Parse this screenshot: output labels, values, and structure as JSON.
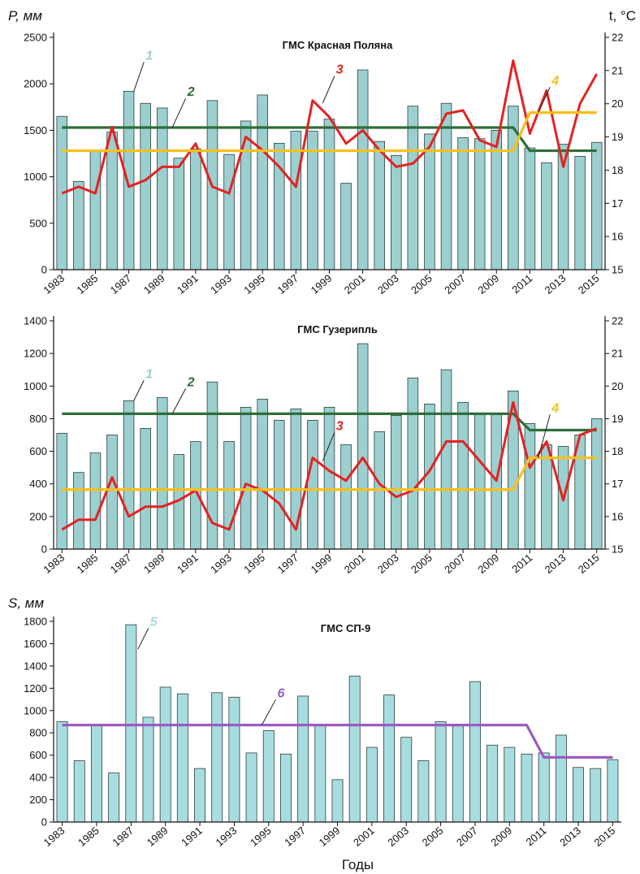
{
  "chart_data": [
    {
      "type": "bar",
      "title": "ГМС Красная Поляна",
      "ylabel": "P, мм",
      "y2label": "t, °C",
      "x_tick_labels": [
        "1983",
        "1985",
        "1987",
        "1989",
        "1991",
        "1993",
        "1995",
        "1997",
        "1999",
        "2001",
        "2003",
        "2005",
        "2007",
        "2009",
        "2011",
        "2013",
        "2015"
      ],
      "y_ticks": [
        "0",
        "500",
        "1000",
        "1500",
        "2000",
        "2500"
      ],
      "y2_ticks": [
        "15",
        "16",
        "17",
        "18",
        "19",
        "20",
        "21",
        "22"
      ],
      "ylim": [
        0,
        2500
      ],
      "y2lim": [
        15,
        22
      ],
      "x": [
        1983,
        1984,
        1985,
        1986,
        1987,
        1988,
        1989,
        1990,
        1991,
        1992,
        1993,
        1994,
        1995,
        1996,
        1997,
        1998,
        1999,
        2000,
        2001,
        2002,
        2003,
        2004,
        2005,
        2006,
        2007,
        2008,
        2009,
        2010,
        2011,
        2012,
        2013,
        2014,
        2015
      ],
      "series": [
        {
          "name": "1",
          "kind": "bar",
          "axis": "left",
          "color": "#9ccfcf",
          "values": [
            1650,
            950,
            1290,
            1480,
            1920,
            1790,
            1740,
            1200,
            1300,
            1820,
            1240,
            1600,
            1880,
            1360,
            1490,
            1490,
            1620,
            930,
            2150,
            1380,
            1230,
            1760,
            1460,
            1790,
            1420,
            1410,
            1500,
            1760,
            1310,
            1150,
            1350,
            1220,
            1370
          ]
        },
        {
          "name": "2",
          "kind": "line",
          "axis": "left",
          "color": "#2e6e3a",
          "values": [
            1530,
            1530,
            1530,
            1530,
            1530,
            1530,
            1530,
            1530,
            1530,
            1530,
            1530,
            1530,
            1530,
            1530,
            1530,
            1530,
            1530,
            1530,
            1530,
            1530,
            1530,
            1530,
            1530,
            1530,
            1530,
            1530,
            1530,
            1530,
            1280,
            1280,
            1280,
            1280,
            1280
          ]
        },
        {
          "name": "3",
          "kind": "line",
          "axis": "right",
          "color": "#e32222",
          "values": [
            17.3,
            17.5,
            17.3,
            19.3,
            17.5,
            17.7,
            18.1,
            18.1,
            18.8,
            17.5,
            17.3,
            19,
            18.6,
            18.1,
            17.5,
            20.1,
            19.6,
            18.8,
            19.2,
            18.6,
            18.1,
            18.2,
            18.7,
            19.7,
            19.8,
            18.9,
            18.7,
            21.3,
            19.1,
            20.4,
            18.1,
            20,
            20.9
          ]
        },
        {
          "name": "4",
          "kind": "line",
          "axis": "left",
          "color": "#f5c01a",
          "values": [
            1280,
            1280,
            1280,
            1280,
            1280,
            1280,
            1280,
            1280,
            1280,
            1280,
            1280,
            1280,
            1280,
            1280,
            1280,
            1280,
            1280,
            1280,
            1280,
            1280,
            1280,
            1280,
            1280,
            1280,
            1280,
            1280,
            1280,
            1280,
            1690,
            1690,
            1690,
            1690,
            1690
          ]
        }
      ],
      "labels": [
        {
          "text": "1",
          "color": "#9ccfcf",
          "x": 1988.1,
          "y": 2260,
          "lead_x": 1987.3,
          "lead_y": 1920
        },
        {
          "text": "2",
          "color": "#2e6e3a",
          "x": 1990.6,
          "y": 1870,
          "lead_x": 1989.6,
          "lead_y": 1530
        },
        {
          "text": "3",
          "color": "#e32222",
          "x": 1999.5,
          "y": 2110,
          "lead_x": 1998.6,
          "lead_y": 1790
        },
        {
          "text": "4",
          "color": "#f5c01a",
          "x": 2012.4,
          "y": 1990,
          "lead_x": 2011.5,
          "lead_y": 1690
        }
      ]
    },
    {
      "type": "bar",
      "title": "ГМС Гузерипль",
      "ylabel": "",
      "y2label": "",
      "x_tick_labels": [
        "1983",
        "1985",
        "1987",
        "1989",
        "1991",
        "1993",
        "1995",
        "1997",
        "1999",
        "2001",
        "2003",
        "2005",
        "2007",
        "2009",
        "2011",
        "2013",
        "2015"
      ],
      "y_ticks": [
        "0",
        "200",
        "400",
        "600",
        "800",
        "1000",
        "1200",
        "1400"
      ],
      "y2_ticks": [
        "15",
        "16",
        "17",
        "18",
        "19",
        "20",
        "21",
        "22"
      ],
      "ylim": [
        0,
        1400
      ],
      "y2lim": [
        15,
        22
      ],
      "x": [
        1983,
        1984,
        1985,
        1986,
        1987,
        1988,
        1989,
        1990,
        1991,
        1992,
        1993,
        1994,
        1995,
        1996,
        1997,
        1998,
        1999,
        2000,
        2001,
        2002,
        2003,
        2004,
        2005,
        2006,
        2007,
        2008,
        2009,
        2010,
        2011,
        2012,
        2013,
        2014,
        2015
      ],
      "series": [
        {
          "name": "1",
          "kind": "bar",
          "axis": "left",
          "color": "#9ccfcf",
          "values": [
            710,
            470,
            590,
            700,
            910,
            740,
            930,
            580,
            660,
            1025,
            660,
            870,
            920,
            790,
            860,
            790,
            870,
            640,
            1260,
            720,
            820,
            1050,
            890,
            1100,
            900,
            830,
            830,
            970,
            770,
            640,
            630,
            700,
            800
          ]
        },
        {
          "name": "2",
          "kind": "line",
          "axis": "left",
          "color": "#2e6e3a",
          "values": [
            830,
            830,
            830,
            830,
            830,
            830,
            830,
            830,
            830,
            830,
            830,
            830,
            830,
            830,
            830,
            830,
            830,
            830,
            830,
            830,
            830,
            830,
            830,
            830,
            830,
            830,
            830,
            830,
            730,
            730,
            730,
            730,
            730
          ]
        },
        {
          "name": "3",
          "kind": "line",
          "axis": "right",
          "color": "#e32222",
          "values": [
            15.6,
            15.9,
            15.9,
            17.2,
            16.0,
            16.3,
            16.3,
            16.5,
            16.8,
            15.8,
            15.6,
            17.0,
            16.8,
            16.4,
            15.6,
            17.8,
            17.4,
            17.1,
            17.8,
            17.0,
            16.6,
            16.8,
            17.4,
            18.3,
            18.3,
            17.7,
            17.1,
            19.5,
            17.5,
            18.3,
            16.5,
            18.5,
            18.7
          ]
        },
        {
          "name": "4",
          "kind": "line",
          "axis": "left",
          "color": "#f5c01a",
          "values": [
            365,
            365,
            365,
            365,
            365,
            365,
            365,
            365,
            365,
            365,
            365,
            365,
            365,
            365,
            365,
            365,
            365,
            365,
            365,
            365,
            365,
            365,
            365,
            365,
            365,
            365,
            365,
            365,
            560,
            560,
            560,
            560,
            560
          ]
        }
      ],
      "labels": [
        {
          "text": "1",
          "color": "#9ccfcf",
          "x": 1988.1,
          "y": 1050,
          "lead_x": 1987.3,
          "lead_y": 910
        },
        {
          "text": "2",
          "color": "#2e6e3a",
          "x": 1990.6,
          "y": 1000,
          "lead_x": 1989.6,
          "lead_y": 830
        },
        {
          "text": "3",
          "color": "#e32222",
          "x": 1999.5,
          "y": 730,
          "lead_x": 1998.6,
          "lead_y": 540
        },
        {
          "text": "4",
          "color": "#f5c01a",
          "x": 2012.4,
          "y": 840,
          "lead_x": 2011.5,
          "lead_y": 560
        }
      ]
    },
    {
      "type": "bar",
      "title": "ГМС СП-9",
      "ylabel": "S, мм",
      "xlabel": "Годы",
      "x_tick_labels": [
        "1983",
        "1985",
        "1987",
        "1989",
        "1991",
        "1993",
        "1995",
        "1997",
        "1999",
        "2001",
        "2003",
        "2005",
        "2007",
        "2009",
        "2011",
        "2013",
        "2015"
      ],
      "y_ticks": [
        "0",
        "200",
        "400",
        "600",
        "800",
        "1000",
        "1200",
        "1400",
        "1600",
        "1800"
      ],
      "ylim": [
        0,
        1800
      ],
      "x": [
        1983,
        1984,
        1985,
        1986,
        1987,
        1988,
        1989,
        1990,
        1991,
        1992,
        1993,
        1994,
        1995,
        1996,
        1997,
        1998,
        1999,
        2000,
        2001,
        2002,
        2003,
        2004,
        2005,
        2006,
        2007,
        2008,
        2009,
        2010,
        2011,
        2012,
        2013,
        2014,
        2015
      ],
      "series": [
        {
          "name": "5",
          "kind": "bar",
          "axis": "left",
          "color": "#a8dde0",
          "values": [
            900,
            550,
            870,
            440,
            1770,
            940,
            1210,
            1150,
            480,
            1160,
            1120,
            620,
            820,
            610,
            1130,
            870,
            380,
            1310,
            670,
            1140,
            760,
            550,
            900,
            870,
            1260,
            690,
            670,
            610,
            620,
            780,
            490,
            480,
            560
          ]
        },
        {
          "name": "6",
          "kind": "line",
          "axis": "left",
          "color": "#9a5bbf",
          "values": [
            870,
            870,
            870,
            870,
            870,
            870,
            870,
            870,
            870,
            870,
            870,
            870,
            870,
            870,
            870,
            870,
            870,
            870,
            870,
            870,
            870,
            870,
            870,
            870,
            870,
            870,
            870,
            870,
            580,
            580,
            580,
            580,
            580
          ]
        }
      ],
      "labels": [
        {
          "text": "5",
          "color": "#a8dde0",
          "x": 1988.2,
          "y": 1760,
          "lead_x": 1987.4,
          "lead_y": 1550
        },
        {
          "text": "6",
          "color": "#9a5bbf",
          "x": 1995.6,
          "y": 1120,
          "lead_x": 1994.6,
          "lead_y": 870
        }
      ]
    }
  ]
}
